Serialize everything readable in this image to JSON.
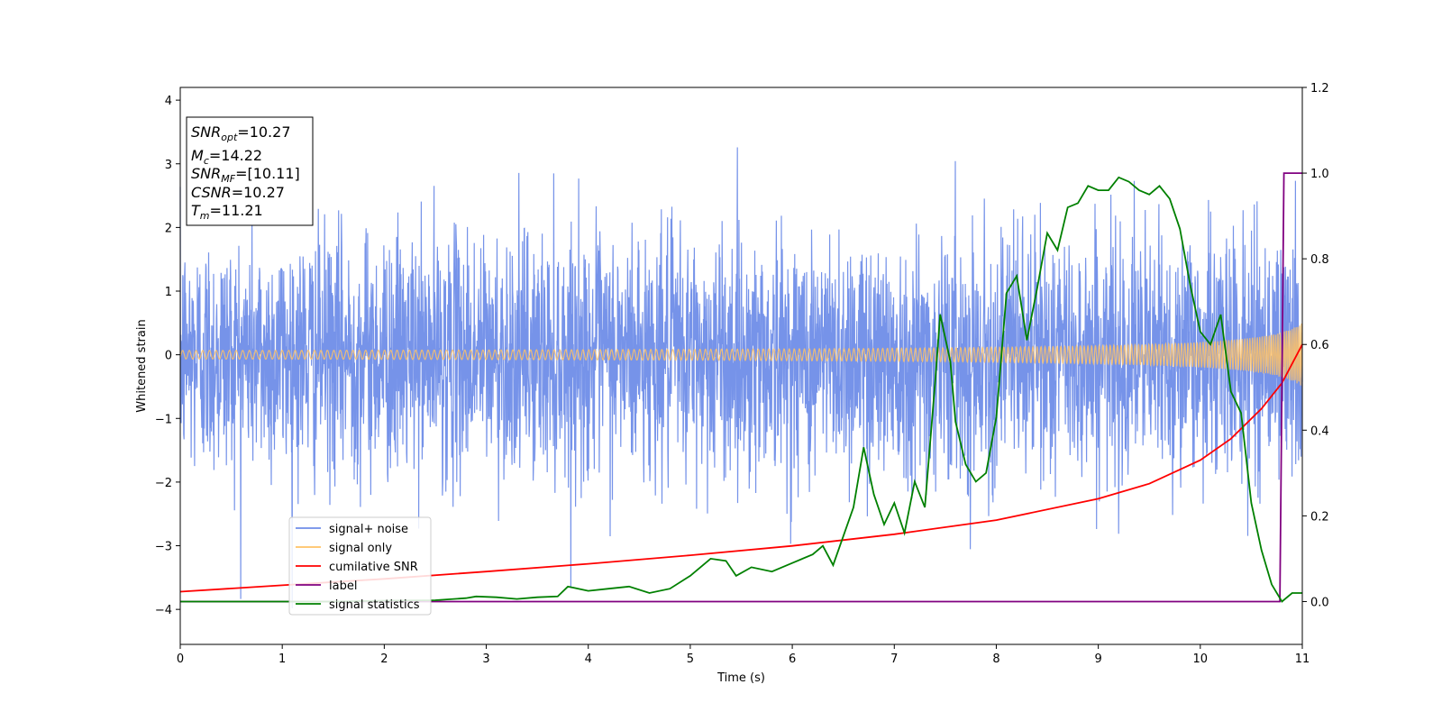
{
  "chart_data": {
    "type": "line",
    "xlabel": "Time (s)",
    "ylabel": "Whitened strain",
    "xlim": [
      0,
      11
    ],
    "ylim_left": [
      -4.55,
      4.2
    ],
    "ylim_right": [
      -0.1,
      1.2
    ],
    "x_ticks": [
      "0",
      "1",
      "2",
      "3",
      "4",
      "5",
      "6",
      "7",
      "8",
      "9",
      "10",
      "11"
    ],
    "y_left_ticks": [
      "−4",
      "−3",
      "−2",
      "−1",
      "0",
      "1",
      "2",
      "3",
      "4"
    ],
    "y_right_ticks": [
      "0.0",
      "0.2",
      "0.4",
      "0.6",
      "0.8",
      "1.0",
      "1.2"
    ],
    "info_box": {
      "lines": [
        {
          "sym": "SNR",
          "sub": "opt",
          "rest": "=10.27"
        },
        {
          "sym": "M",
          "sub": "c",
          "rest": "=14.22"
        },
        {
          "sym": "SNR",
          "sub": "MF",
          "rest": "=[10.11]"
        },
        {
          "sym": "CSNR",
          "sub": "",
          "rest": "=10.27"
        },
        {
          "sym": "T",
          "sub": "m",
          "rest": "=11.21"
        }
      ]
    },
    "legend": {
      "placement": "lower-left",
      "entries": [
        {
          "label": "signal+ noise",
          "color": "#6f8de8"
        },
        {
          "label": "signal only",
          "color": "#ffc266"
        },
        {
          "label": "cumilative SNR",
          "color": "#ff0000"
        },
        {
          "label": "label",
          "color": "#800080"
        },
        {
          "label": "signal statistics",
          "color": "#008000"
        }
      ]
    },
    "series": [
      {
        "name": "signal+ noise",
        "axis": "left",
        "style": "dense noise",
        "std": 1.0,
        "envelope_core": [
          -1.6,
          1.6
        ],
        "peak_range": [
          -4.2,
          3.85
        ]
      },
      {
        "name": "signal only",
        "axis": "left",
        "style": "chirp",
        "amplitude_start": 0.03,
        "amplitude_end": 0.5
      },
      {
        "name": "cumilative SNR",
        "axis": "right",
        "x": [
          0,
          1,
          2,
          3,
          4,
          5,
          6,
          7,
          8,
          9,
          9.5,
          10,
          10.3,
          10.6,
          10.8,
          11
        ],
        "y": [
          0.023,
          0.038,
          0.053,
          0.07,
          0.088,
          0.108,
          0.13,
          0.157,
          0.19,
          0.24,
          0.275,
          0.33,
          0.38,
          0.45,
          0.51,
          0.6
        ]
      },
      {
        "name": "label",
        "axis": "right",
        "x": [
          0,
          10.78,
          10.82,
          11
        ],
        "y": [
          0,
          0,
          1,
          1
        ]
      },
      {
        "name": "signal statistics",
        "axis": "right",
        "x": [
          0,
          0.5,
          1,
          1.5,
          2,
          2.5,
          2.8,
          2.9,
          3.1,
          3.3,
          3.5,
          3.7,
          3.8,
          4.0,
          4.2,
          4.4,
          4.6,
          4.8,
          5.0,
          5.2,
          5.35,
          5.45,
          5.6,
          5.8,
          6.0,
          6.2,
          6.3,
          6.4,
          6.6,
          6.7,
          6.8,
          6.9,
          7.0,
          7.1,
          7.2,
          7.3,
          7.4,
          7.45,
          7.55,
          7.6,
          7.7,
          7.8,
          7.9,
          8.0,
          8.1,
          8.2,
          8.3,
          8.4,
          8.5,
          8.6,
          8.7,
          8.8,
          8.9,
          9.0,
          9.1,
          9.2,
          9.3,
          9.4,
          9.5,
          9.6,
          9.7,
          9.8,
          9.9,
          10.0,
          10.1,
          10.2,
          10.3,
          10.4,
          10.5,
          10.6,
          10.7,
          10.8,
          10.9,
          11.0
        ],
        "y": [
          0.0,
          0.0,
          0.0,
          0.0,
          0.002,
          0.003,
          0.008,
          0.012,
          0.01,
          0.006,
          0.01,
          0.012,
          0.035,
          0.025,
          0.03,
          0.035,
          0.02,
          0.03,
          0.06,
          0.1,
          0.095,
          0.06,
          0.08,
          0.07,
          0.09,
          0.11,
          0.13,
          0.085,
          0.22,
          0.36,
          0.25,
          0.18,
          0.23,
          0.16,
          0.28,
          0.22,
          0.51,
          0.67,
          0.56,
          0.42,
          0.32,
          0.28,
          0.3,
          0.43,
          0.72,
          0.76,
          0.61,
          0.73,
          0.86,
          0.82,
          0.92,
          0.93,
          0.97,
          0.96,
          0.96,
          0.99,
          0.98,
          0.96,
          0.95,
          0.97,
          0.94,
          0.87,
          0.74,
          0.63,
          0.6,
          0.67,
          0.49,
          0.44,
          0.23,
          0.12,
          0.04,
          0.0,
          0.02,
          0.02
        ]
      }
    ]
  }
}
